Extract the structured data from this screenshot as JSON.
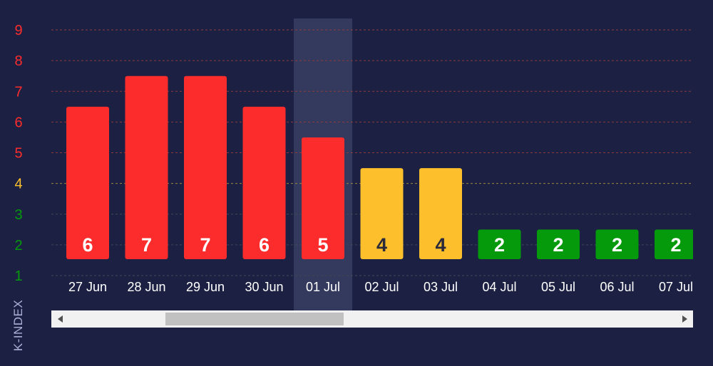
{
  "colors": {
    "background": "#1c2143",
    "red": "#fd2c2c",
    "yellow": "#fdbf2c",
    "green": "#059a0b",
    "highlight": "#343a5d",
    "grid_red": "#8f3b3b",
    "grid_yellow": "#9c8540",
    "grid_green": "#3a4a55"
  },
  "axis": {
    "ylabel": "K-INDEX"
  },
  "chart_data": {
    "type": "bar",
    "title": "",
    "xlabel": "",
    "ylabel": "K-INDEX",
    "categories": [
      "27 Jun",
      "28 Jun",
      "29 Jun",
      "30 Jun",
      "01 Jul",
      "02 Jul",
      "03 Jul",
      "04 Jul",
      "05 Jul",
      "06 Jul",
      "07 Jul"
    ],
    "values": [
      6,
      7,
      7,
      6,
      5,
      4,
      4,
      2,
      2,
      2,
      2
    ],
    "yticks": [
      1,
      2,
      3,
      4,
      5,
      6,
      7,
      8,
      9
    ],
    "ylim": [
      1,
      9
    ],
    "highlighted_category": "01 Jul",
    "grid": true,
    "legend": "none"
  },
  "scrollbar": {
    "left_icon": "arrow-left-icon",
    "right_icon": "arrow-right-icon"
  }
}
